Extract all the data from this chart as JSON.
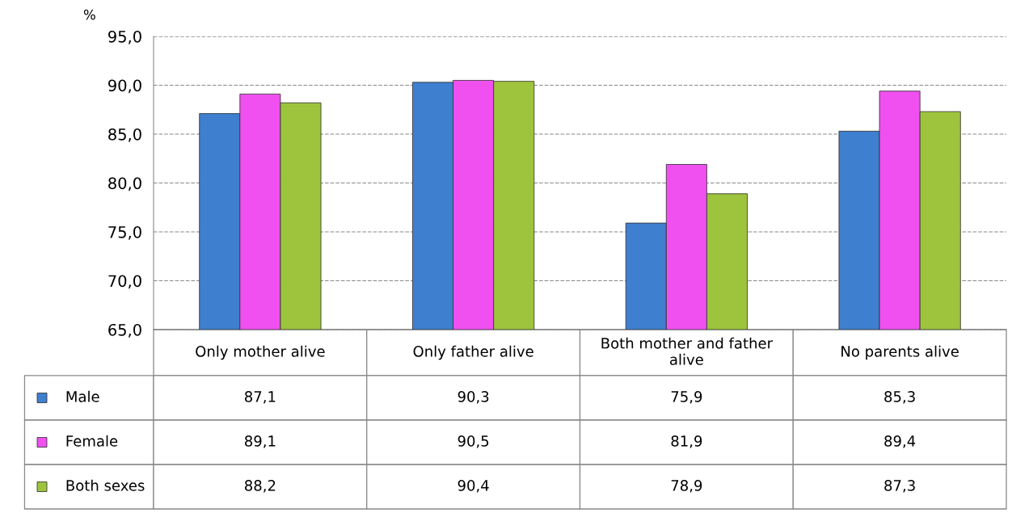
{
  "chart_data": {
    "type": "bar",
    "ylabel": "%",
    "categories": [
      "Only mother alive",
      "Only father alive",
      "Both mother and father alive",
      "No parents alive"
    ],
    "series": [
      {
        "name": "Male",
        "color": "#3f7fcf",
        "values": [
          87.1,
          90.3,
          75.9,
          85.3
        ],
        "value_labels": [
          "87,1",
          "90,3",
          "75,9",
          "85,3"
        ]
      },
      {
        "name": "Female",
        "color": "#f050f0",
        "values": [
          89.1,
          90.5,
          81.9,
          89.4
        ],
        "value_labels": [
          "89,1",
          "90,5",
          "81,9",
          "89,4"
        ]
      },
      {
        "name": "Both sexes",
        "color": "#9dc43c",
        "values": [
          88.2,
          90.4,
          78.9,
          87.3
        ],
        "value_labels": [
          "88,2",
          "90,4",
          "78,9",
          "87,3"
        ]
      }
    ],
    "ylim": [
      65,
      95
    ],
    "yticks": [
      {
        "value": 65,
        "label": "65,0"
      },
      {
        "value": 70,
        "label": "70,0"
      },
      {
        "value": 75,
        "label": "75,0"
      },
      {
        "value": 80,
        "label": "80,0"
      },
      {
        "value": 85,
        "label": "85,0"
      },
      {
        "value": 90,
        "label": "90,0"
      },
      {
        "value": 95,
        "label": "95,0"
      }
    ],
    "grid": "y",
    "legend": "bottom"
  }
}
